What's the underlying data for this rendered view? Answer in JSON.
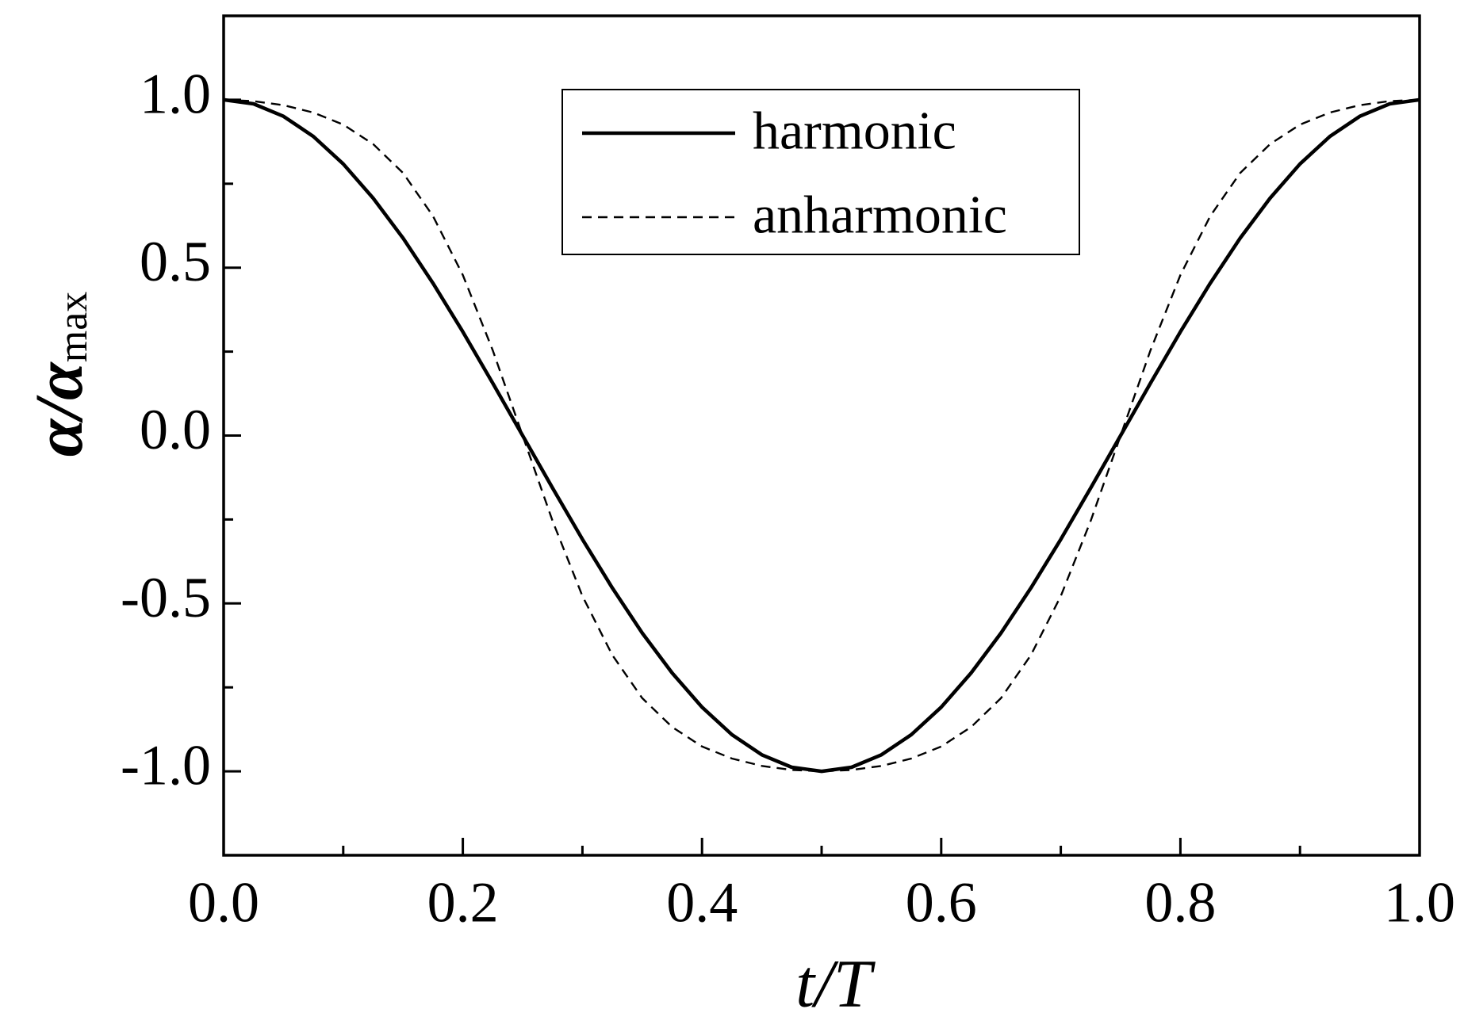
{
  "chart_data": {
    "type": "line",
    "x_label": "t/T",
    "y_label_main": "α/α",
    "y_label_subscript": "max",
    "x": [
      0,
      0.025,
      0.05,
      0.075,
      0.1,
      0.125,
      0.15,
      0.175,
      0.2,
      0.225,
      0.25,
      0.275,
      0.3,
      0.325,
      0.35,
      0.375,
      0.4,
      0.425,
      0.45,
      0.475,
      0.5,
      0.525,
      0.55,
      0.575,
      0.6,
      0.625,
      0.65,
      0.675,
      0.7,
      0.725,
      0.75,
      0.775,
      0.8,
      0.825,
      0.85,
      0.875,
      0.9,
      0.925,
      0.95,
      0.975,
      1
    ],
    "series": [
      {
        "name": "harmonic",
        "color": "#000000",
        "dashed": false,
        "values": [
          1,
          0.988,
          0.951,
          0.891,
          0.809,
          0.707,
          0.588,
          0.454,
          0.309,
          0.156,
          0,
          -0.156,
          -0.309,
          -0.454,
          -0.588,
          -0.707,
          -0.809,
          -0.891,
          -0.951,
          -0.988,
          -1,
          -0.988,
          -0.951,
          -0.891,
          -0.809,
          -0.707,
          -0.588,
          -0.454,
          -0.309,
          -0.156,
          0,
          0.156,
          0.309,
          0.454,
          0.588,
          0.707,
          0.809,
          0.891,
          0.951,
          0.988,
          1
        ]
      },
      {
        "name": "anharmonic",
        "color": "#000000",
        "dashed": true,
        "values": [
          1,
          0.996,
          0.984,
          0.962,
          0.926,
          0.868,
          0.782,
          0.654,
          0.478,
          0.254,
          0,
          -0.254,
          -0.478,
          -0.654,
          -0.782,
          -0.868,
          -0.926,
          -0.962,
          -0.984,
          -0.996,
          -1,
          -0.996,
          -0.984,
          -0.962,
          -0.926,
          -0.868,
          -0.782,
          -0.654,
          -0.478,
          -0.254,
          0,
          0.254,
          0.478,
          0.654,
          0.782,
          0.868,
          0.926,
          0.962,
          0.984,
          0.996,
          1
        ]
      }
    ],
    "xlim": [
      0,
      1
    ],
    "ylim": [
      -1.25,
      1.25
    ],
    "xticks": [
      {
        "value": 0,
        "label": "0.0"
      },
      0.2,
      0.4,
      0.6,
      0.8,
      {
        "value": 1,
        "label": "1.0"
      }
    ],
    "xminorticks": [
      0.1,
      0.3,
      0.5,
      0.7,
      0.9
    ],
    "yticks": [
      {
        "value": -1,
        "label": "-1.0"
      },
      -0.5,
      {
        "value": 0,
        "label": "0.0"
      },
      0.5,
      {
        "value": 1,
        "label": "1.0"
      }
    ],
    "yminorticks": [
      -0.75,
      -0.25,
      0.25,
      0.75
    ],
    "legend": "top-center"
  }
}
